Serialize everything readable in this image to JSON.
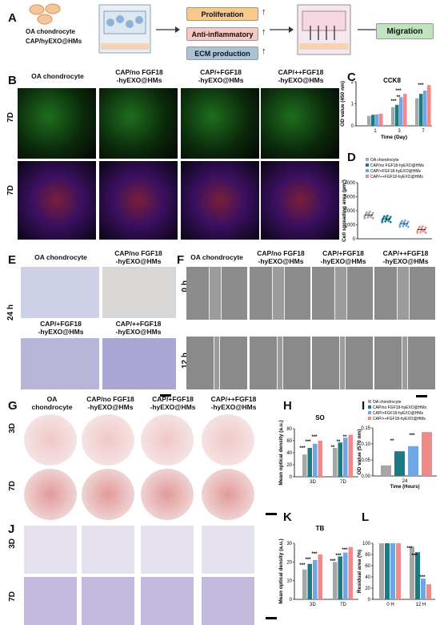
{
  "panels": {
    "A": "A",
    "B": "B",
    "C": "C",
    "D": "D",
    "E": "E",
    "F": "F",
    "G": "G",
    "H": "H",
    "I": "I",
    "J": "J",
    "K": "K",
    "L": "L"
  },
  "schematic": {
    "cell1": "OA chondrocyte",
    "cell2": "CAP/hyEXO@HMs",
    "effects": [
      "Proliferation",
      "Anti-inflammatory",
      "ECM production"
    ],
    "arrow_up": "↑",
    "migration": "Migration",
    "colors": {
      "proliferation": "#f7c98a",
      "anti": "#f6c7c3",
      "ecm": "#a9c4d8",
      "migration": "#bfe5bf"
    }
  },
  "groups": {
    "oa": "OA chondrocyte",
    "no": "CAP/no FGF18\n-hyEXO@HMs",
    "plus": "CAP/+FGF18\n-hyEXO@HMs",
    "pp": "CAP/++FGF18\n-hyEXO@HMs",
    "oa_short": "OA\nchondrocyte"
  },
  "rows": {
    "d7": "7D",
    "d3": "3D",
    "h24": "24 h",
    "h0": "0 h",
    "h12": "12 h"
  },
  "legend": [
    "OA chondrocyte",
    "CAP/no FGF18-hyEXO@HMs",
    "CAP/+FGF18-hyEXO@HMs",
    "CAP/++FGF18-hyEXO@HMs"
  ],
  "colors": {
    "oa": "#a6a6a6",
    "no": "#1a7a86",
    "plus": "#6ea6e8",
    "pp": "#f08a8a"
  },
  "sig": {
    "s3": "***",
    "s2": "**"
  },
  "charts": {
    "C": {
      "title": "CCK8",
      "ylabel": "OD value (450 nm)",
      "xlabel": "Time (Day)",
      "xticks": [
        "1",
        "3",
        "7"
      ],
      "yticks": [
        "0",
        "1",
        "2"
      ],
      "values": [
        [
          0.45,
          0.5,
          0.52,
          0.55
        ],
        [
          0.85,
          0.95,
          1.3,
          1.45
        ],
        [
          1.25,
          1.45,
          1.6,
          1.85
        ]
      ]
    },
    "D": {
      "ylabel": "Cell spreading area (µm²)",
      "yticks": [
        "0",
        "1000",
        "2000",
        "3000",
        "4000"
      ],
      "means": [
        1700,
        1420,
        1080,
        660
      ]
    },
    "H": {
      "title": "SO",
      "ylabel": "Mean optical density (a.u.)",
      "xticks": [
        "3D",
        "7D"
      ],
      "yticks": [
        "0",
        "20",
        "40",
        "60",
        "80"
      ],
      "values": [
        [
          37,
          48,
          55,
          60
        ],
        [
          48,
          57,
          65,
          70
        ]
      ]
    },
    "I": {
      "ylabel": "OD value (570 nm)",
      "xlabel": "24\nTime (Hours)",
      "yticks": [
        "0.00",
        "0.05",
        "0.10",
        "0.15"
      ],
      "values": [
        0.033,
        0.077,
        0.093,
        0.137
      ]
    },
    "K": {
      "title": "TB",
      "ylabel": "Mean optical density (a.u.)",
      "xticks": [
        "3D",
        "7D"
      ],
      "yticks": [
        "0",
        "10",
        "20",
        "30"
      ],
      "values": [
        [
          16,
          19,
          21,
          24
        ],
        [
          20,
          23,
          25,
          28
        ]
      ]
    },
    "L": {
      "ylabel": "Residual area (%)",
      "xticks": [
        "0 H",
        "12 H"
      ],
      "yticks": [
        "0",
        "20",
        "40",
        "60",
        "80",
        "100"
      ],
      "values": [
        [
          100,
          100,
          100,
          100
        ],
        [
          94,
          84,
          37,
          27
        ]
      ]
    }
  }
}
